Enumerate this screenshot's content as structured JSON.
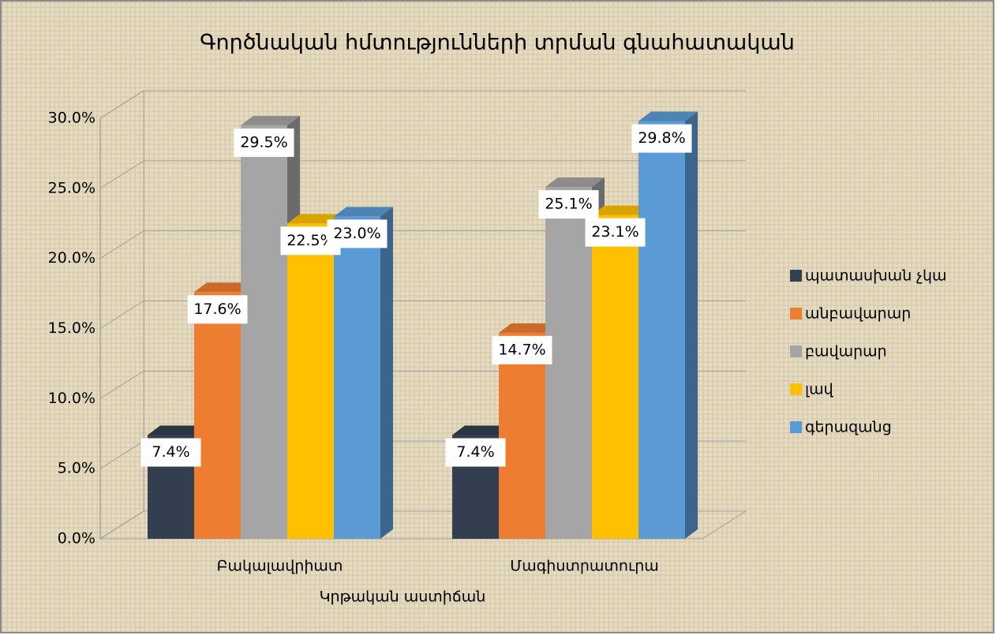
{
  "chart_data": {
    "type": "bar3d",
    "title": "Գործնական հմտությունների տրման գնահատական",
    "x_label": "Կրթական աստիճան",
    "categories": [
      "Բակալավրիատ",
      "Մագիստրատուրա"
    ],
    "series": [
      {
        "name": "պատասխան չկա",
        "color": "#333f50",
        "values": [
          7.4,
          7.4
        ],
        "value_labels": [
          "7.4%",
          "7.4%"
        ]
      },
      {
        "name": "անբավարար",
        "color": "#ed7d31",
        "values": [
          17.6,
          14.7
        ],
        "value_labels": [
          "17.6%",
          "14.7%"
        ]
      },
      {
        "name": "բավարար",
        "color": "#a5a5a5",
        "values": [
          29.5,
          25.1
        ],
        "value_labels": [
          "29.5%",
          "25.1%"
        ]
      },
      {
        "name": "լավ",
        "color": "#ffc000",
        "values": [
          22.5,
          23.1
        ],
        "value_labels": [
          "22.5%",
          "23.1%"
        ]
      },
      {
        "name": "գերազանց",
        "color": "#5b9bd5",
        "values": [
          23.0,
          29.8
        ],
        "value_labels": [
          "23.0%",
          "29.8%"
        ]
      }
    ],
    "ylim": [
      0,
      30
    ],
    "yticks": [
      {
        "value": 0,
        "label": "0.0%"
      },
      {
        "value": 5,
        "label": "5.0%"
      },
      {
        "value": 10,
        "label": "10.0%"
      },
      {
        "value": 15,
        "label": "15.0%"
      },
      {
        "value": 20,
        "label": "20.0%"
      },
      {
        "value": 25,
        "label": "25.0%"
      },
      {
        "value": 30,
        "label": "30.0%"
      }
    ],
    "grid": true,
    "legend": "right"
  }
}
